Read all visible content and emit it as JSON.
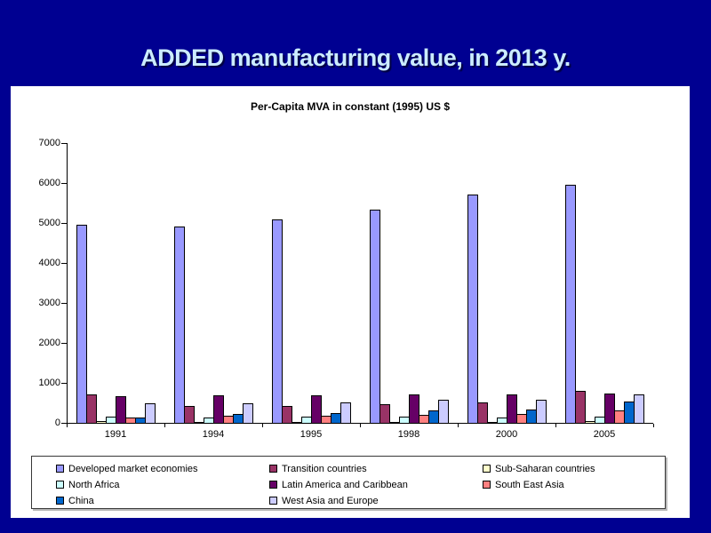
{
  "slide": {
    "title": "ADDED manufacturing value, in 2013 y.",
    "background_color": "#000091",
    "title_color": "#CCECFF"
  },
  "chart_data": {
    "type": "bar",
    "title": "Per-Capita MVA in constant (1995) US $",
    "categories": [
      "1991",
      "1994",
      "1995",
      "1998",
      "2000",
      "2005"
    ],
    "series": [
      {
        "name": "Developed market economies",
        "color": "#9999FF",
        "values": [
          4950,
          4920,
          5080,
          5340,
          5700,
          5960
        ]
      },
      {
        "name": "Transition countries",
        "color": "#993366",
        "values": [
          700,
          430,
          430,
          460,
          500,
          790
        ]
      },
      {
        "name": "Sub-Saharan countries",
        "color": "#FFFFCC",
        "values": [
          40,
          30,
          30,
          30,
          30,
          40
        ]
      },
      {
        "name": "North Africa",
        "color": "#CCFFFF",
        "values": [
          150,
          140,
          150,
          150,
          130,
          160
        ]
      },
      {
        "name": "Latin America and Caribbean",
        "color": "#660066",
        "values": [
          660,
          690,
          690,
          720,
          700,
          740
        ]
      },
      {
        "name": "South East Asia",
        "color": "#FF8080",
        "values": [
          140,
          170,
          180,
          200,
          220,
          300
        ]
      },
      {
        "name": "China",
        "color": "#0066CC",
        "values": [
          140,
          220,
          250,
          310,
          330,
          540
        ]
      },
      {
        "name": "West Asia and Europe",
        "color": "#CCCCFF",
        "values": [
          480,
          480,
          510,
          570,
          580,
          700
        ]
      }
    ],
    "ylim": [
      0,
      7000
    ],
    "ytick_step": 1000,
    "yticks": [
      "0",
      "1000",
      "2000",
      "3000",
      "4000",
      "5000",
      "6000",
      "7000"
    ],
    "grid": false,
    "legend_position": "bottom",
    "legend_columns": 3
  }
}
